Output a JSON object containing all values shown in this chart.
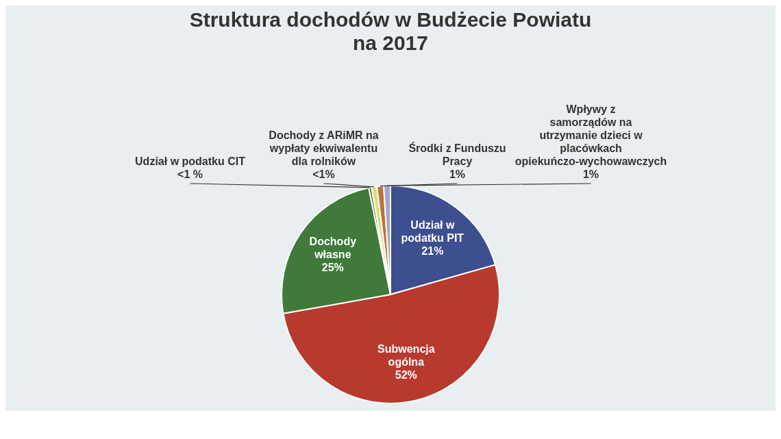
{
  "chart_data": {
    "type": "pie",
    "title": "Struktura dochodów w Budżecie Powiatu na 2017",
    "categories": [
      "Udział w podatku PIT",
      "Subwencja ogólna",
      "Dochody własne",
      "Udział w podatku CIT",
      "Dochody z ARiMR na wypłaty ekwiwalentu dla rolników",
      "Środki z Funduszu Pracy",
      "Wpływy z samorządów na utrzymanie dzieci w placówkach opiekuńczo-wychowawczych"
    ],
    "values": [
      20.6,
      51.6,
      24.6,
      0.4,
      0.8,
      1.0,
      1.0
    ],
    "value_labels": [
      "21%",
      "52%",
      "25%",
      "<1 %",
      "<1%",
      "1%",
      "1%"
    ],
    "colors": [
      "#3d4f8f",
      "#b83a2e",
      "#3f7a3a",
      "#5a6a30",
      "#d8e07a",
      "#c0703a",
      "#a0a8cc"
    ],
    "legend": false
  }
}
